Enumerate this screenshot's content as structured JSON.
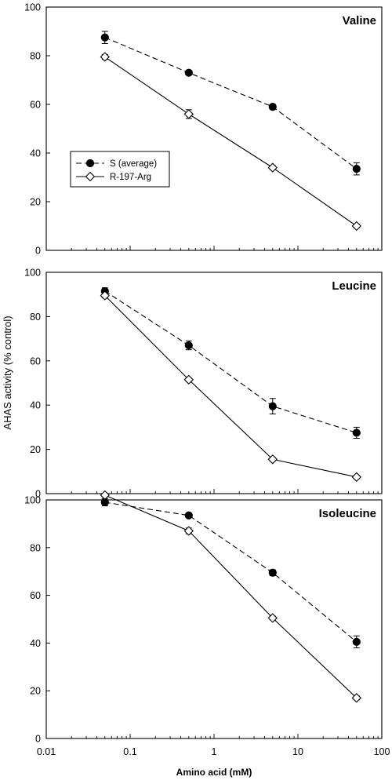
{
  "chart_data": {
    "type": "line",
    "xlabel": "Amino acid (mM)",
    "ylabel": "AHAS activity (% control)",
    "x_scale": "log",
    "xlim": [
      0.01,
      100
    ],
    "x_ticks": [
      0.01,
      0.1,
      1,
      10,
      100
    ],
    "x_tick_labels": [
      "0.01",
      "0.1",
      "1",
      "10",
      "100"
    ],
    "legend": {
      "position": "left-middle of top panel",
      "entries": [
        "S (average)",
        "R-197-Arg"
      ]
    },
    "panels": [
      {
        "title": "Valine",
        "ylim": [
          0,
          100
        ],
        "y_ticks": [
          0,
          20,
          40,
          60,
          80,
          100
        ],
        "y_tick_labels": [
          "0",
          "20",
          "40",
          "60",
          "80",
          "100"
        ],
        "series": [
          {
            "name": "S (average)",
            "x": [
              0.05,
              0.5,
              5,
              50
            ],
            "y": [
              87.5,
              73,
              59,
              33.5
            ],
            "err": [
              2.5,
              0.8,
              1,
              2.5
            ]
          },
          {
            "name": "R-197-Arg",
            "x": [
              0.05,
              0.5,
              5,
              50
            ],
            "y": [
              79.5,
              56,
              34,
              10
            ],
            "err": [
              1,
              1.8,
              0.8,
              0.8
            ]
          }
        ]
      },
      {
        "title": "Leucine",
        "ylim": [
          0,
          100
        ],
        "y_ticks": [
          0,
          20,
          40,
          60,
          80,
          100
        ],
        "y_tick_labels": [
          "0",
          "20",
          "40",
          "60",
          "80",
          "100"
        ],
        "series": [
          {
            "name": "S (average)",
            "x": [
              0.05,
              0.5,
              5,
              50
            ],
            "y": [
              91.5,
              67,
              39.5,
              27.5
            ],
            "err": [
              1.5,
              2,
              3.5,
              2.5
            ]
          },
          {
            "name": "R-197-Arg",
            "x": [
              0.05,
              0.5,
              5,
              50
            ],
            "y": [
              89.5,
              51.5,
              15.5,
              7.5
            ],
            "err": [
              1,
              0.8,
              0.8,
              0.8
            ]
          }
        ]
      },
      {
        "title": "Isoleucine",
        "ylim": [
          0,
          100
        ],
        "y_ticks": [
          0,
          20,
          40,
          60,
          80,
          100
        ],
        "y_tick_labels": [
          "0",
          "20",
          "40",
          "60",
          "80",
          "100"
        ],
        "series": [
          {
            "name": "S (average)",
            "x": [
              0.05,
              0.5,
              5,
              50
            ],
            "y": [
              99,
              93.5,
              69.5,
              40.5
            ],
            "err": [
              1.5,
              0.8,
              1.2,
              2.5
            ]
          },
          {
            "name": "R-197-Arg",
            "x": [
              0.05,
              0.5,
              5,
              50
            ],
            "y": [
              102,
              87,
              50.5,
              17
            ],
            "err": [
              0.8,
              1.2,
              0.8,
              0.8
            ]
          }
        ]
      }
    ]
  }
}
